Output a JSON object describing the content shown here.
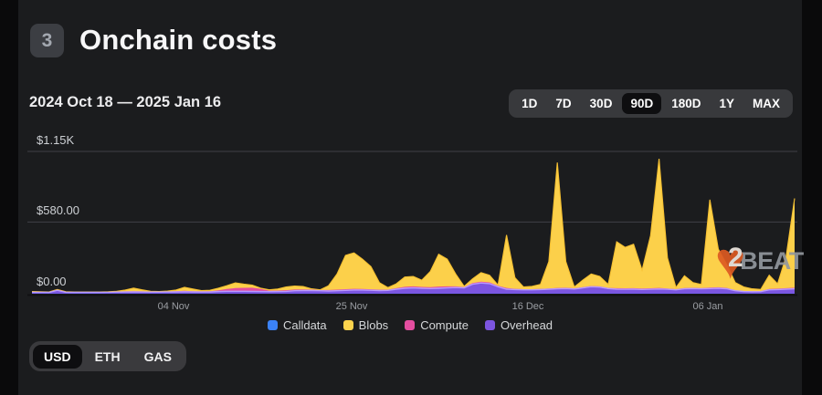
{
  "header": {
    "badge": "3",
    "title": "Onchain costs"
  },
  "date_range": "2024 Oct 18 — 2025 Jan 16",
  "time_ranges": {
    "options": [
      "1D",
      "7D",
      "30D",
      "90D",
      "180D",
      "1Y",
      "MAX"
    ],
    "selected": "90D"
  },
  "unit_toggle": {
    "options": [
      "USD",
      "ETH",
      "GAS"
    ],
    "selected": "USD"
  },
  "watermark": {
    "logo_char": "2",
    "text": "BEAT"
  },
  "chart_data": {
    "type": "area",
    "stacked": true,
    "title": "Onchain costs",
    "unit": "USD",
    "x_start": "2024-10-18",
    "x_end": "2025-01-16",
    "x_tick_labels": [
      "04 Nov",
      "25 Nov",
      "16 Dec",
      "06 Jan"
    ],
    "y_tick_labels": [
      "$1.15K",
      "$580.00",
      "$0.00"
    ],
    "y_max": 1150,
    "y_gridlines": [
      1150,
      580
    ],
    "legend": [
      {
        "name": "Calldata",
        "color": "#3b82f6"
      },
      {
        "name": "Blobs",
        "color": "#fcd34d"
      },
      {
        "name": "Compute",
        "color": "#e44ea0"
      },
      {
        "name": "Overhead",
        "color": "#7c55e0"
      }
    ],
    "series": [
      {
        "name": "Calldata",
        "color": "#4a6cf0",
        "line": "#6d8df5",
        "values": [
          2,
          2,
          2,
          2,
          2,
          2,
          2,
          2,
          2,
          2,
          2,
          2,
          2,
          2,
          2,
          2,
          2,
          2,
          2,
          2,
          2,
          2,
          2,
          2,
          2,
          2,
          2,
          2,
          2,
          2,
          2,
          2,
          2,
          2,
          2,
          2,
          2,
          2,
          2,
          2,
          2,
          2,
          2,
          2,
          2,
          2,
          2,
          2,
          2,
          2,
          2,
          2,
          2,
          2,
          2,
          2,
          2,
          2,
          2,
          2,
          2,
          2,
          2,
          2,
          2,
          2,
          2,
          2,
          2,
          2,
          2,
          2,
          2,
          2,
          2,
          2,
          2,
          2,
          2,
          2,
          2,
          2,
          2,
          2,
          2,
          2,
          2,
          2,
          2,
          2,
          2
        ]
      },
      {
        "name": "Overhead",
        "color": "#7c55e0",
        "line": "#b79bff",
        "values": [
          10,
          10,
          9,
          26,
          10,
          9,
          9,
          9,
          9,
          10,
          11,
          12,
          13,
          12,
          11,
          11,
          12,
          13,
          14,
          13,
          12,
          13,
          16,
          18,
          18,
          18,
          17,
          16,
          15,
          16,
          17,
          22,
          24,
          24,
          22,
          20,
          22,
          25,
          28,
          28,
          26,
          24,
          25,
          35,
          42,
          45,
          42,
          40,
          42,
          45,
          48,
          45,
          75,
          85,
          80,
          55,
          35,
          32,
          30,
          30,
          32,
          35,
          38,
          40,
          36,
          45,
          55,
          52,
          40,
          35,
          34,
          35,
          33,
          34,
          36,
          34,
          30,
          38,
          40,
          38,
          40,
          42,
          38,
          22,
          16,
          14,
          15,
          30,
          32,
          35,
          38
        ]
      },
      {
        "name": "Compute",
        "color": "#e44ea0",
        "line": "#f16ab8",
        "values": [
          3,
          3,
          3,
          4,
          3,
          3,
          3,
          3,
          3,
          3,
          4,
          5,
          6,
          5,
          4,
          4,
          4,
          5,
          8,
          6,
          5,
          5,
          10,
          18,
          26,
          28,
          30,
          22,
          8,
          8,
          10,
          10,
          9,
          7,
          6,
          8,
          9,
          10,
          10,
          9,
          8,
          7,
          6,
          8,
          12,
          13,
          11,
          12,
          14,
          13,
          10,
          7,
          9,
          10,
          10,
          8,
          10,
          6,
          5,
          5,
          5,
          6,
          7,
          7,
          6,
          6,
          6,
          6,
          5,
          8,
          8,
          8,
          7,
          8,
          9,
          7,
          5,
          6,
          6,
          5,
          8,
          8,
          7,
          4,
          3,
          3,
          3,
          7,
          7,
          8,
          9
        ]
      },
      {
        "name": "Blobs",
        "color": "#fcd04a",
        "line": "#f7c132",
        "values": [
          3,
          1,
          1,
          3,
          1,
          1,
          1,
          1,
          1,
          1,
          3,
          11,
          25,
          13,
          3,
          1,
          4,
          10,
          28,
          17,
          6,
          8,
          17,
          27,
          42,
          30,
          21,
          5,
          7,
          12,
          26,
          28,
          23,
          7,
          2,
          35,
          127,
          273,
          290,
          241,
          184,
          57,
          17,
          35,
          79,
          80,
          55,
          126,
          262,
          220,
          100,
          6,
          34,
          73,
          58,
          5,
          428,
          90,
          18,
          23,
          36,
          217,
          1013,
          211,
          11,
          57,
          97,
          80,
          28,
          375,
          331,
          355,
          148,
          426,
          1043,
          247,
          13,
          99,
          42,
          30,
          710,
          308,
          188,
          62,
          34,
          21,
          15,
          111,
          39,
          255,
          721
        ]
      }
    ]
  }
}
